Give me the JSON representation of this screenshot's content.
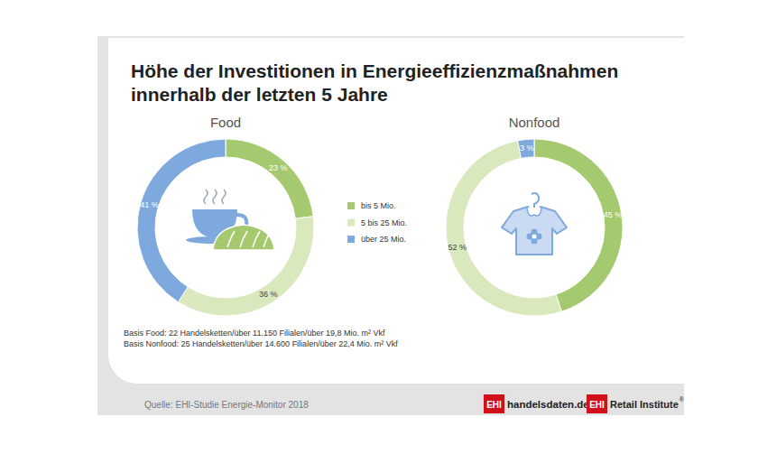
{
  "header": {
    "title": [
      "Höhe der Investitionen in Energieeffizienzmaßnahmen",
      "innerhalb der letzten 5 Jahre"
    ]
  },
  "chart_data": [
    {
      "type": "donut",
      "title": "Food",
      "categories": [
        "bis 5 Mio.",
        "5 bis 25 Mio.",
        "über 25 Mio."
      ],
      "values": [
        23,
        36,
        41
      ],
      "value_labels": [
        "23 %",
        "36 %",
        "41 %"
      ],
      "colors": [
        "#a5c96e",
        "#d9e8bd",
        "#7ea9de"
      ],
      "data_labels": true,
      "legend": "right"
    },
    {
      "type": "donut",
      "title": "Nonfood",
      "categories": [
        "bis 5 Mio.",
        "5 bis 25 Mio.",
        "über 25 Mio."
      ],
      "values": [
        45,
        52,
        3
      ],
      "value_labels": [
        "45 %",
        "52 %",
        "3 %"
      ],
      "colors": [
        "#a5c96e",
        "#d9e8bd",
        "#7ea9de"
      ],
      "data_labels": true
    }
  ],
  "notes": [
    "Basis Food: 22 Handelsketten/über 11.150 Filialen/über 19,8 Mio. m² Vkf",
    "Basis Nonfood: 25 Handelsketten/über 14.600 Filialen/über 22,4 Mio. m² Vkf"
  ],
  "footer": {
    "source": "Quelle: EHI-Studie Energie-Monitor 2018",
    "logos": [
      {
        "mark": "EHI",
        "text": "handelsdaten.de"
      },
      {
        "mark": "EHI",
        "text": "Retail Institute",
        "sup": "®"
      }
    ]
  }
}
